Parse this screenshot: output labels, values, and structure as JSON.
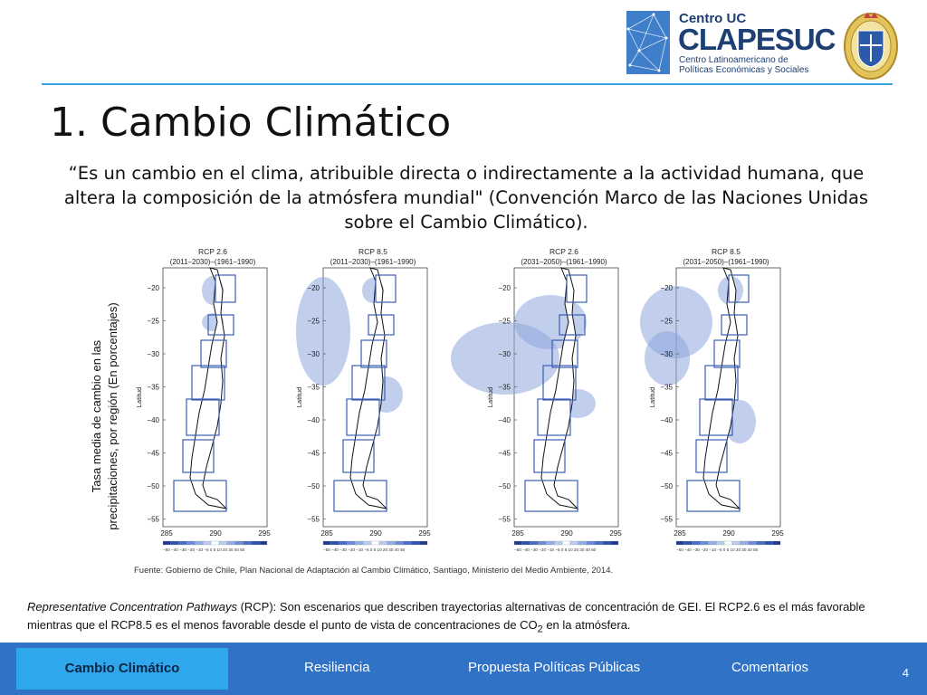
{
  "logo": {
    "centro": "Centro UC",
    "clapes": "CLAPESUC",
    "subtitle_line1": "Centro Latinoamericano de",
    "subtitle_line2": "Políticas Económicas y Sociales"
  },
  "slide": {
    "title": "1. Cambio Climático",
    "quote": "“Es un cambio en el clima, atribuible directa o indirectamente a la actividad humana, que altera la composición de la atmósfera mundial\" (Convención Marco de las Naciones Unidas sobre el Cambio Climático).",
    "y_axis_label_line1": "Tasa media de cambio en las",
    "y_axis_label_line2": "precipitaciones, por región (En porcentajes)",
    "caption_italic": "Representative Concentration Pathways",
    "caption_rest": " (RCP): Son escenarios que describen trayectorias alternativas de concentración de GEI. El RCP2.6 es el más favorable mientras que el RCP8.5 es el menos favorable desde el punto de vista de concentraciones de CO",
    "caption_sub": "2",
    "caption_end": " en la atmósfera."
  },
  "maps": {
    "source": "Fuente: Gobierno de Chile, Plan Nacional de Adaptación al Cambio Climático, Santiago, Ministerio del Medio Ambiente, 2014.",
    "axis_title": "Latitud",
    "lat_ticks": [
      "−20",
      "−25",
      "−30",
      "−35",
      "−40",
      "−45",
      "−50",
      "−55"
    ],
    "lon_ticks": [
      "285",
      "290",
      "295"
    ],
    "colorbar_ticks": "−50 −40 −30 −20 −10 −5  0  5  10  20  30  40  50",
    "panels": [
      {
        "scenario": "RCP 2.6",
        "period": "(2011–2030)–(1961–1990)"
      },
      {
        "scenario": "RCP 8.5",
        "period": "(2011–2030)–(1961–1990)"
      },
      {
        "scenario": "RCP 2.6",
        "period": "(2031–2050)–(1961–1990)"
      },
      {
        "scenario": "RCP 8.5",
        "period": "(2031–2050)–(1961–1990)"
      }
    ]
  },
  "nav": {
    "tabs": [
      "Cambio Climático",
      "Resiliencia",
      "Propuesta Políticas Públicas",
      "Comentarios"
    ],
    "page_number": "4"
  },
  "colors": {
    "nav_bg": "#2f72c6",
    "nav_active": "#2ea7ec",
    "rule": "#3aa0e0",
    "map_shade": "#8ea6dc"
  }
}
